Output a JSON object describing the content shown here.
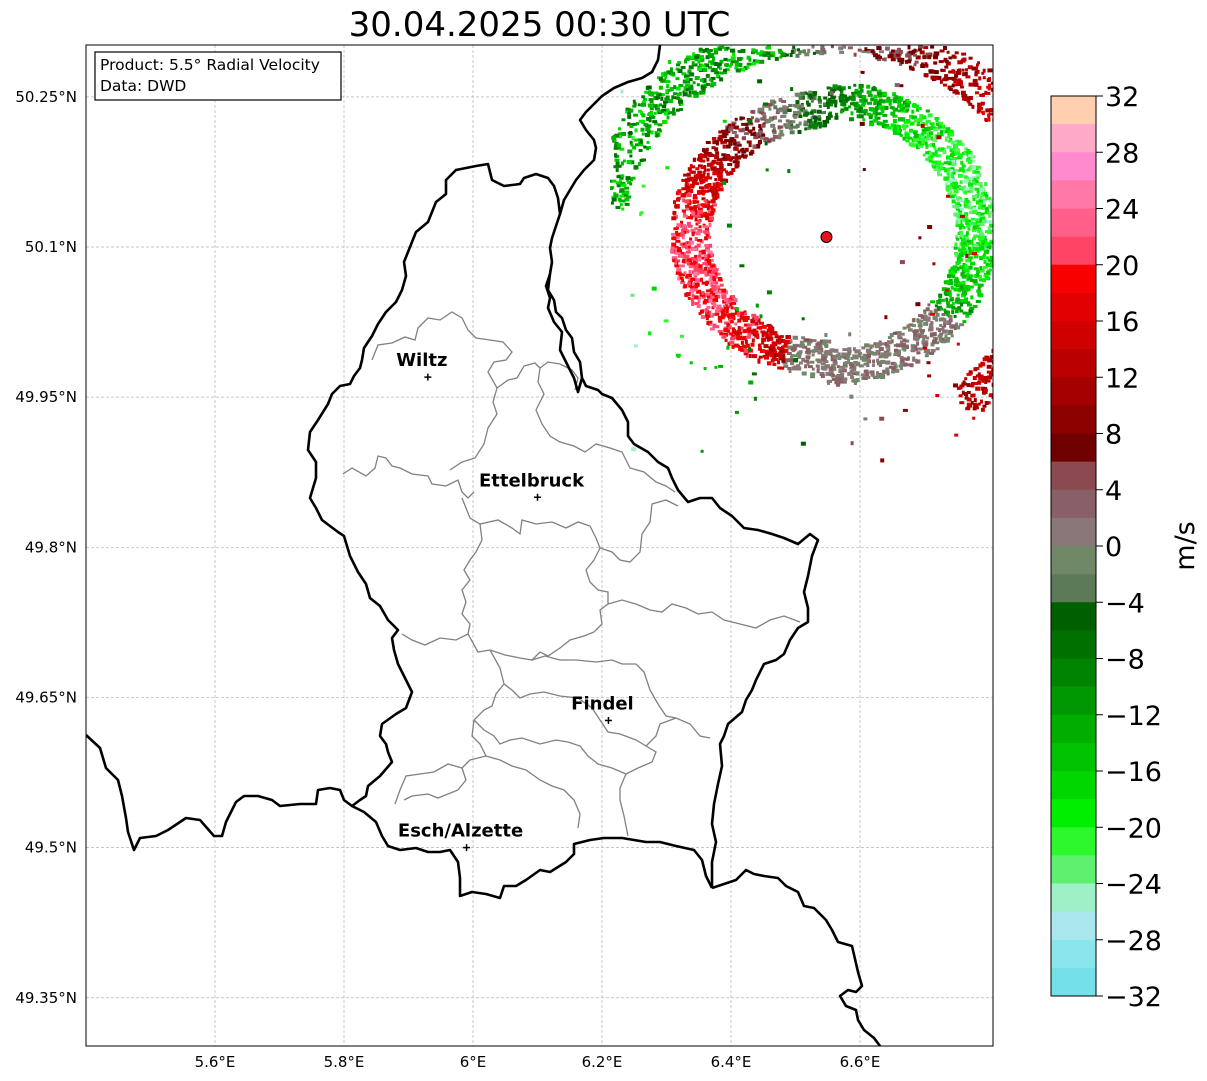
{
  "title": "30.04.2025 00:30 UTC",
  "info_box": {
    "product": "Product: 5.5° Radial Velocity",
    "data_source": "Data: DWD"
  },
  "map": {
    "extent": {
      "lon_min": 5.4,
      "lon_max": 6.8,
      "lat_min": 49.3,
      "lat_max": 50.3
    },
    "x_ticks": [
      {
        "value": 5.6,
        "label": "5.6°E"
      },
      {
        "value": 5.8,
        "label": "5.8°E"
      },
      {
        "value": 6.0,
        "label": "6°E"
      },
      {
        "value": 6.2,
        "label": "6.2°E"
      },
      {
        "value": 6.4,
        "label": "6.4°E"
      },
      {
        "value": 6.6,
        "label": "6.6°E"
      }
    ],
    "y_ticks": [
      {
        "value": 49.35,
        "label": "49.35°N"
      },
      {
        "value": 49.5,
        "label": "49.5°N"
      },
      {
        "value": 49.65,
        "label": "49.65°N"
      },
      {
        "value": 49.8,
        "label": "49.8°N"
      },
      {
        "value": 49.95,
        "label": "49.95°N"
      },
      {
        "value": 50.1,
        "label": "50.1°N"
      },
      {
        "value": 50.25,
        "label": "50.25°N"
      }
    ],
    "cities": [
      {
        "name": "Wiltz",
        "lon": 5.93,
        "lat": 49.97
      },
      {
        "name": "Ettelbruck",
        "lon": 6.1,
        "lat": 49.85
      },
      {
        "name": "Findel",
        "lon": 6.21,
        "lat": 49.627
      },
      {
        "name": "Esch/Alzette",
        "lon": 5.99,
        "lat": 49.5
      }
    ],
    "radar_site": {
      "lon": 6.548,
      "lat": 50.11,
      "color": "#e8141c"
    },
    "gridlines": true
  },
  "colorbar": {
    "unit": "m/s",
    "min": -32,
    "max": 32,
    "step": 4,
    "tick_labels": [
      "32",
      "28",
      "24",
      "20",
      "16",
      "12",
      "8",
      "4",
      "0",
      "−4",
      "−8",
      "−12",
      "−16",
      "−20",
      "−24",
      "−28",
      "−32"
    ],
    "colors_top_to_bottom": [
      "#ffcfb0",
      "#ffaac8",
      "#ff8acd",
      "#ff78a8",
      "#ff608a",
      "#ff4466",
      "#f80000",
      "#e20000",
      "#cf0000",
      "#bb0000",
      "#a50000",
      "#8c0000",
      "#700000",
      "#8a4a50",
      "#8a6068",
      "#8a7878",
      "#708868",
      "#5d7a58",
      "#006000",
      "#007000",
      "#008400",
      "#009800",
      "#00ae00",
      "#00c200",
      "#00d600",
      "#00ee00",
      "#2cf82c",
      "#60f070",
      "#9ef0c6",
      "#a8e8ec",
      "#8ae6ec",
      "#74e0e8"
    ]
  }
}
